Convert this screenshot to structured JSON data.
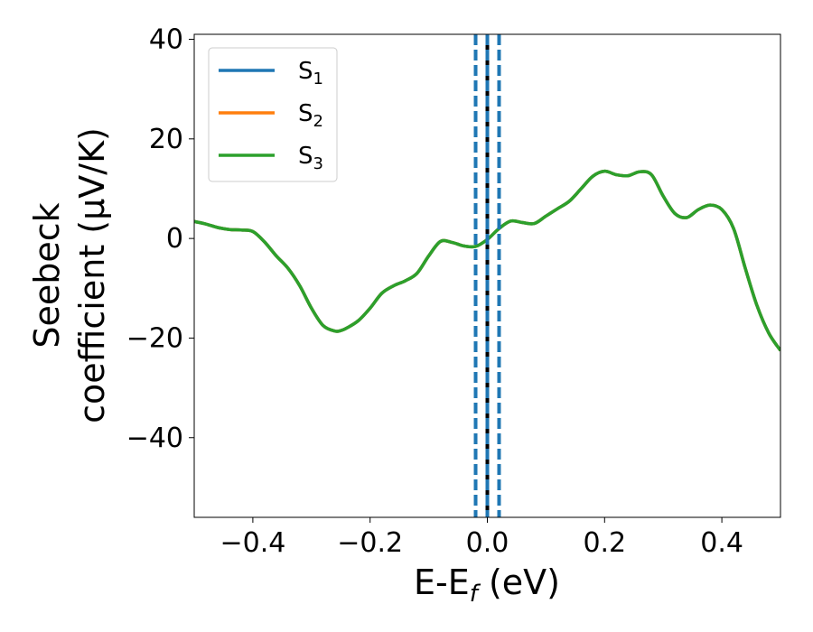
{
  "chart_data": {
    "type": "line",
    "xlabel": {
      "main": "E-E",
      "sub": "f",
      "suffix": " (eV)"
    },
    "ylabel": {
      "line1": "Seebeck",
      "line2": "coefficient  (μV/K)"
    },
    "xlim": [
      -0.5,
      0.5
    ],
    "ylim": [
      -56,
      41
    ],
    "xticks": [
      -0.4,
      -0.2,
      0.0,
      0.2,
      0.4
    ],
    "xtick_labels": [
      "−0.4",
      "−0.2",
      "0.0",
      "0.2",
      "0.4"
    ],
    "yticks": [
      -40,
      -20,
      0,
      20,
      40
    ],
    "ytick_labels": [
      "−40",
      "−20",
      "0",
      "20",
      "40"
    ],
    "grid": false,
    "legend_position": "upper-left",
    "x": [
      -0.5,
      -0.48,
      -0.46,
      -0.44,
      -0.42,
      -0.4,
      -0.38,
      -0.36,
      -0.34,
      -0.32,
      -0.3,
      -0.28,
      -0.26,
      -0.25,
      -0.24,
      -0.22,
      -0.2,
      -0.18,
      -0.16,
      -0.14,
      -0.12,
      -0.1,
      -0.08,
      -0.06,
      -0.04,
      -0.02,
      0.0,
      0.02,
      0.04,
      0.06,
      0.08,
      0.1,
      0.12,
      0.14,
      0.16,
      0.18,
      0.2,
      0.22,
      0.24,
      0.26,
      0.28,
      0.3,
      0.32,
      0.34,
      0.36,
      0.38,
      0.4,
      0.42,
      0.44,
      0.46,
      0.48,
      0.5
    ],
    "series": [
      {
        "name": "S",
        "sub": "1",
        "color": "#1f77b4",
        "values": [
          3.4,
          2.9,
          2.2,
          1.8,
          1.7,
          1.4,
          -0.7,
          -3.5,
          -6.0,
          -9.5,
          -14.0,
          -17.5,
          -18.6,
          -18.5,
          -18.0,
          -16.5,
          -14.0,
          -11.0,
          -9.5,
          -8.5,
          -7.0,
          -3.5,
          -0.6,
          -0.8,
          -1.5,
          -1.6,
          -0.2,
          2.0,
          3.5,
          3.2,
          3.0,
          4.5,
          6.0,
          7.5,
          10.0,
          12.5,
          13.5,
          12.8,
          12.6,
          13.4,
          12.8,
          8.5,
          5.0,
          4.2,
          5.8,
          6.7,
          5.8,
          2.0,
          -6.0,
          -13.5,
          -19.0,
          -22.5
        ]
      },
      {
        "name": "S",
        "sub": "2",
        "color": "#ff7f0e",
        "values": [
          3.4,
          2.9,
          2.2,
          1.8,
          1.7,
          1.4,
          -0.7,
          -3.5,
          -6.0,
          -9.5,
          -14.0,
          -17.5,
          -18.6,
          -18.5,
          -18.0,
          -16.5,
          -14.0,
          -11.0,
          -9.5,
          -8.5,
          -7.0,
          -3.5,
          -0.6,
          -0.8,
          -1.5,
          -1.6,
          -0.2,
          2.0,
          3.5,
          3.2,
          3.0,
          4.5,
          6.0,
          7.5,
          10.0,
          12.5,
          13.5,
          12.8,
          12.6,
          13.4,
          12.8,
          8.5,
          5.0,
          4.2,
          5.8,
          6.7,
          5.8,
          2.0,
          -6.0,
          -13.5,
          -19.0,
          -22.5
        ]
      },
      {
        "name": "S",
        "sub": "3",
        "color": "#2ca02c",
        "values": [
          3.4,
          2.9,
          2.2,
          1.8,
          1.7,
          1.4,
          -0.7,
          -3.5,
          -6.0,
          -9.5,
          -14.0,
          -17.5,
          -18.6,
          -18.5,
          -18.0,
          -16.5,
          -14.0,
          -11.0,
          -9.5,
          -8.5,
          -7.0,
          -3.5,
          -0.6,
          -0.8,
          -1.5,
          -1.6,
          -0.2,
          2.0,
          3.5,
          3.2,
          3.0,
          4.5,
          6.0,
          7.5,
          10.0,
          12.5,
          13.5,
          12.8,
          12.6,
          13.4,
          12.8,
          8.5,
          5.0,
          4.2,
          5.8,
          6.7,
          5.8,
          2.0,
          -6.0,
          -13.5,
          -19.0,
          -22.5
        ]
      }
    ],
    "vlines": [
      {
        "x": -0.02,
        "style": "dashed",
        "color": "#1f77b4"
      },
      {
        "x": 0.0,
        "style": "solid",
        "color": "#000000"
      },
      {
        "x": 0.0,
        "style": "dashed",
        "color": "#1f77b4"
      },
      {
        "x": 0.02,
        "style": "dashed",
        "color": "#1f77b4"
      }
    ]
  }
}
